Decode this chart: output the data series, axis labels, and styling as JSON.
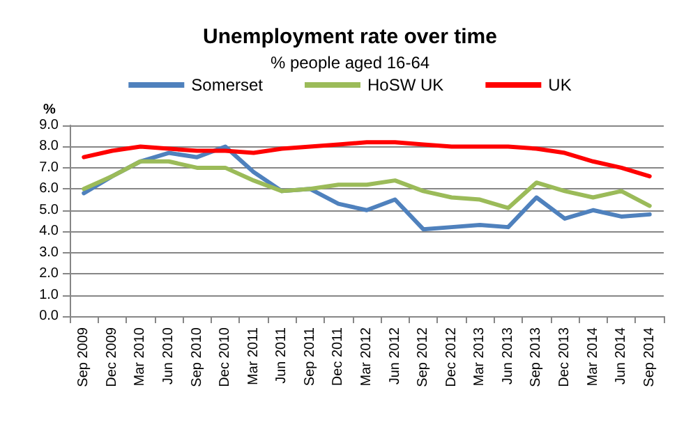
{
  "chart_data": {
    "type": "line",
    "title": "Unemployment rate over time",
    "subtitle": "% people aged 16-64",
    "ylabel": "%",
    "categories": [
      "Sep 2009",
      "Dec 2009",
      "Mar 2010",
      "Jun 2010",
      "Sep 2010",
      "Dec 2010",
      "Mar 2011",
      "Jun 2011",
      "Sep 2011",
      "Dec 2011",
      "Mar 2012",
      "Jun 2012",
      "Sep 2012",
      "Dec 2012",
      "Mar 2013",
      "Jun 2013",
      "Sep 2013",
      "Dec 2013",
      "Mar 2014",
      "Jun 2014",
      "Sep 2014"
    ],
    "series": [
      {
        "name": "Somerset",
        "color": "#4f81bd",
        "values": [
          5.8,
          6.6,
          7.3,
          7.7,
          7.5,
          8.0,
          6.8,
          5.9,
          6.0,
          5.3,
          5.0,
          5.5,
          4.1,
          4.2,
          4.3,
          4.2,
          5.6,
          4.6,
          5.0,
          4.7,
          4.8
        ]
      },
      {
        "name": "HoSW UK",
        "color": "#9bbb59",
        "values": [
          6.0,
          6.6,
          7.3,
          7.3,
          7.0,
          7.0,
          6.4,
          5.9,
          6.0,
          6.2,
          6.2,
          6.4,
          5.9,
          5.6,
          5.5,
          5.1,
          6.3,
          5.9,
          5.6,
          5.9,
          5.2
        ]
      },
      {
        "name": "UK",
        "color": "#ff0000",
        "values": [
          7.5,
          7.8,
          8.0,
          7.9,
          7.8,
          7.8,
          7.7,
          7.9,
          8.0,
          8.1,
          8.2,
          8.2,
          8.1,
          8.0,
          8.0,
          8.0,
          7.9,
          7.7,
          7.3,
          7.0,
          6.6
        ]
      }
    ],
    "ylim": [
      0,
      9
    ],
    "yticks": [
      {
        "value": 0,
        "label": "0.0"
      },
      {
        "value": 1,
        "label": "1.0"
      },
      {
        "value": 2,
        "label": "2.0"
      },
      {
        "value": 3,
        "label": "3.0"
      },
      {
        "value": 4,
        "label": "4.0"
      },
      {
        "value": 5,
        "label": "5.0"
      },
      {
        "value": 6,
        "label": "6.0"
      },
      {
        "value": 7,
        "label": "7.0"
      },
      {
        "value": 8,
        "label": "8.0"
      },
      {
        "value": 9,
        "label": "9.0"
      }
    ],
    "grid": "y",
    "legend": "top",
    "marker": "none",
    "line_style": "solid"
  }
}
